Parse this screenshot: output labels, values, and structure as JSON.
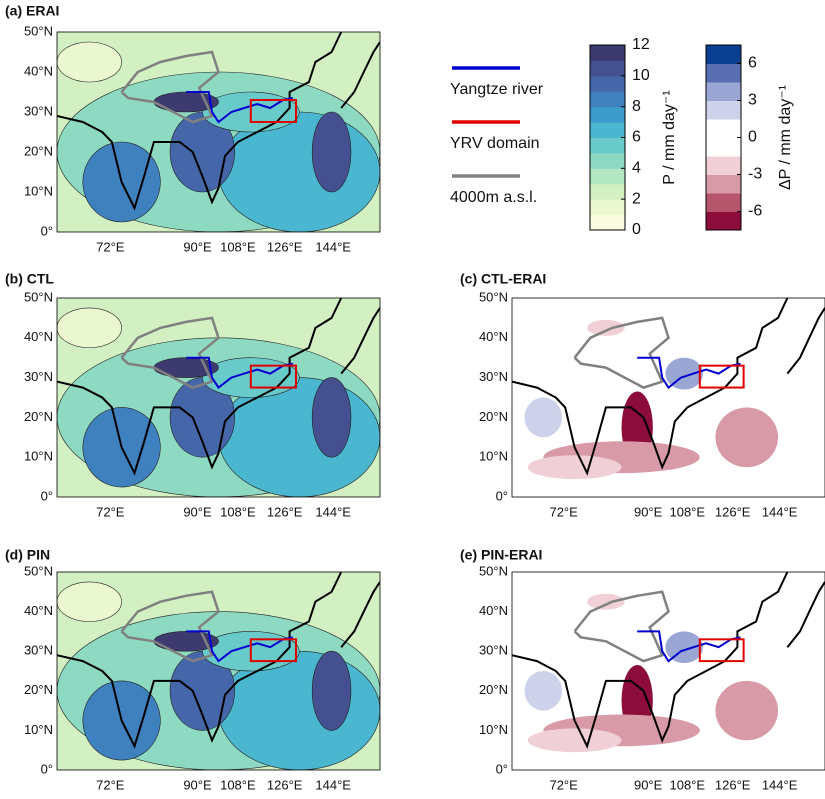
{
  "panels": [
    {
      "title": "(a) ERAI"
    },
    {
      "title": "(b) CTL"
    },
    {
      "title": "(c) CTL-ERAI"
    },
    {
      "title": "(d) PIN"
    },
    {
      "title": "(e) PIN-ERAI"
    }
  ],
  "lat_labels": [
    "50°N",
    "40°N",
    "30°N",
    "20°N",
    "10°N",
    "0°"
  ],
  "lon_labels": [
    "72°E",
    "90°E",
    "108°E",
    "126°E",
    "144°E"
  ],
  "legend": [
    {
      "label": "Yangtze river",
      "color": "#0000d0"
    },
    {
      "label": "YRV domain",
      "color": "#e00000"
    },
    {
      "label": "4000m a.s.l.",
      "color": "#808080"
    }
  ],
  "colorbars": [
    {
      "label": "P / mm day⁻¹",
      "lim": [
        0,
        12
      ],
      "ticks": [
        0,
        2,
        4,
        6,
        8,
        10,
        12
      ],
      "colors": [
        "#fbfbe2",
        "#eaf7cf",
        "#d2f0c2",
        "#b1e6c0",
        "#8ed9c2",
        "#68cbca",
        "#4bb6cf",
        "#3b9ccc",
        "#3f80bf",
        "#4566a8",
        "#44508f",
        "#3c3a6e"
      ]
    },
    {
      "label": "ΔP / mm day⁻¹",
      "lim": [
        -7.5,
        7.5
      ],
      "ticks": [
        -6,
        -3,
        0,
        3,
        6
      ],
      "colors": [
        "#8c0c3c",
        "#b5566d",
        "#d89aa6",
        "#f0d0d6",
        "#ffffff",
        "#ffffff",
        "#cdd2ea",
        "#9aa6d3",
        "#5a6fb2",
        "#0b3f8f"
      ]
    }
  ]
}
